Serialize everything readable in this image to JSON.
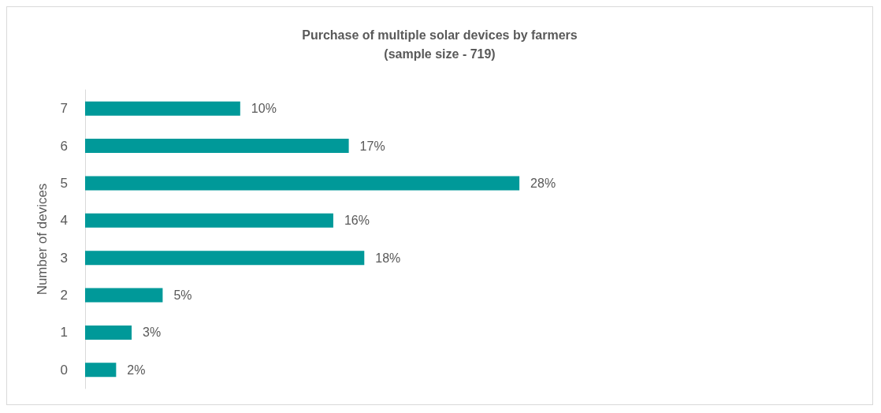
{
  "chart_data": {
    "type": "bar",
    "orientation": "horizontal",
    "title": "Purchase of multiple solar devices by farmers",
    "subtitle": "(sample size - 719)",
    "ylabel": "Number of devices",
    "categories": [
      "7",
      "6",
      "5",
      "4",
      "3",
      "2",
      "1",
      "0"
    ],
    "values": [
      10,
      17,
      28,
      16,
      18,
      5,
      3,
      2
    ],
    "value_labels": [
      "10%",
      "17%",
      "28%",
      "16%",
      "18%",
      "5%",
      "3%",
      "2%"
    ],
    "color": "#009999"
  }
}
